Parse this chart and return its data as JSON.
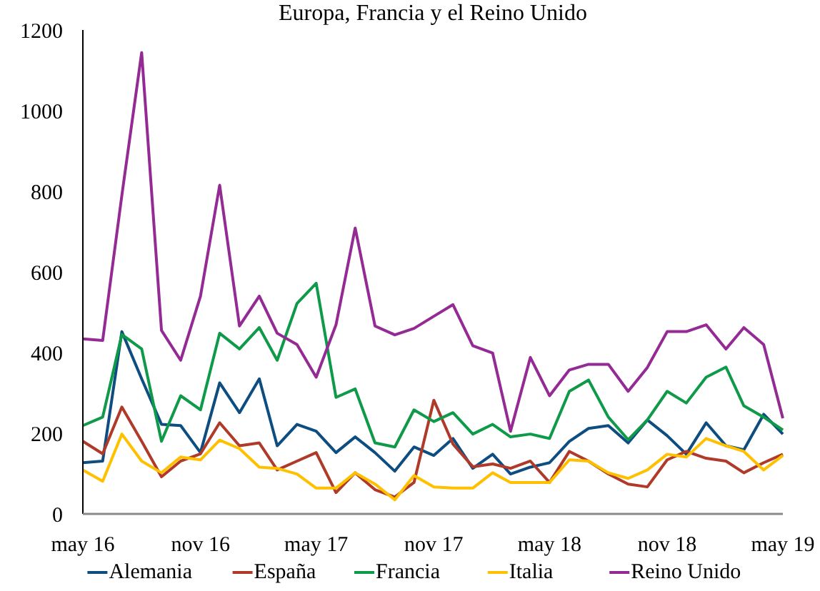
{
  "chart_data": {
    "type": "line",
    "title": "Europa, Francia y el Reino Unido",
    "x": [
      "2016-05",
      "2016-06",
      "2016-07",
      "2016-08",
      "2016-09",
      "2016-10",
      "2016-11",
      "2016-12",
      "2017-01",
      "2017-02",
      "2017-03",
      "2017-04",
      "2017-05",
      "2017-06",
      "2017-07",
      "2017-08",
      "2017-09",
      "2017-10",
      "2017-11",
      "2017-12",
      "2018-01",
      "2018-02",
      "2018-03",
      "2018-04",
      "2018-05",
      "2018-06",
      "2018-07",
      "2018-08",
      "2018-09",
      "2018-10",
      "2018-11",
      "2018-12",
      "2019-01",
      "2019-02",
      "2019-03",
      "2019-04",
      "2019-05"
    ],
    "series": [
      {
        "name": "Alemania",
        "color": "#0e4d80",
        "values": [
          127,
          131,
          452,
          335,
          222,
          219,
          152,
          325,
          251,
          335,
          169,
          222,
          205,
          152,
          191,
          152,
          106,
          166,
          145,
          187,
          113,
          148,
          99,
          116,
          127,
          180,
          212,
          219,
          176,
          233,
          194,
          148,
          226,
          169,
          159,
          247,
          198
        ]
      },
      {
        "name": "España",
        "color": "#b03a2a",
        "values": [
          180,
          149,
          265,
          180,
          92,
          131,
          149,
          226,
          169,
          176,
          109,
          131,
          152,
          53,
          102,
          60,
          42,
          78,
          282,
          173,
          117,
          124,
          113,
          131,
          78,
          155,
          131,
          99,
          74,
          67,
          134,
          155,
          138,
          131,
          102,
          127,
          148
        ]
      },
      {
        "name": "Francia",
        "color": "#0e9a48",
        "values": [
          219,
          240,
          445,
          409,
          180,
          293,
          258,
          448,
          409,
          462,
          381,
          522,
          572,
          289,
          310,
          176,
          166,
          258,
          229,
          251,
          198,
          222,
          191,
          198,
          187,
          304,
          332,
          240,
          184,
          233,
          304,
          275,
          339,
          364,
          268,
          240,
          208
        ]
      },
      {
        "name": "Italia",
        "color": "#ffc000",
        "values": [
          109,
          81,
          198,
          131,
          102,
          141,
          134,
          183,
          162,
          116,
          113,
          99,
          64,
          64,
          102,
          74,
          35,
          95,
          67,
          64,
          64,
          102,
          78,
          78,
          78,
          134,
          131,
          102,
          88,
          109,
          148,
          141,
          187,
          169,
          155,
          109,
          145
        ]
      },
      {
        "name": "Reino Unido",
        "color": "#942a94",
        "values": [
          434,
          430,
          790,
          1144,
          455,
          381,
          540,
          815,
          466,
          540,
          448,
          420,
          339,
          469,
          709,
          466,
          444,
          460,
          490,
          519,
          417,
          399,
          205,
          388,
          293,
          357,
          371,
          371,
          304,
          363,
          452,
          452,
          469,
          409,
          462,
          420,
          237
        ]
      }
    ],
    "xlim": [
      "2016-05",
      "2019-05"
    ],
    "xticks": [
      {
        "value": "2016-05",
        "label": "may 16"
      },
      {
        "value": "2016-11",
        "label": "nov 16"
      },
      {
        "value": "2017-05",
        "label": "may 17"
      },
      {
        "value": "2017-11",
        "label": "nov 17"
      },
      {
        "value": "2018-05",
        "label": "may 18"
      },
      {
        "value": "2018-11",
        "label": "nov 18"
      },
      {
        "value": "2019-05",
        "label": "may 19"
      }
    ],
    "ylim": [
      0,
      1200
    ],
    "yticks": [
      0,
      200,
      400,
      600,
      800,
      1000,
      1200
    ],
    "grid": false,
    "legend": "bottom",
    "marker": "none",
    "line_style": "solid"
  }
}
